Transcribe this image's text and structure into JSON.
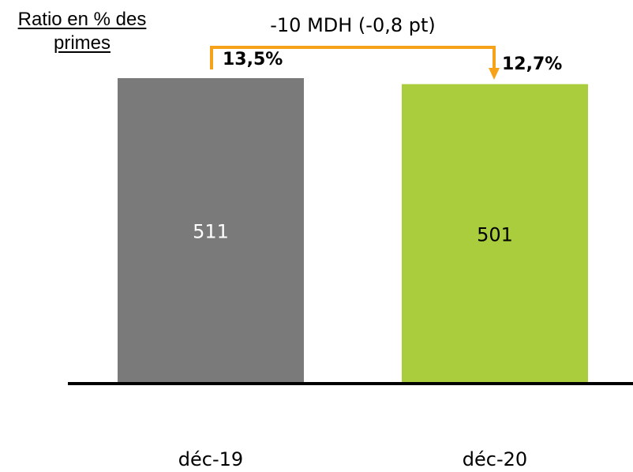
{
  "chart_data": {
    "type": "bar",
    "title": "Ratio en % des primes",
    "categories": [
      "déc-19",
      "déc-20"
    ],
    "values": [
      511,
      501
    ],
    "ratios": [
      "13,5%",
      "12,7%"
    ],
    "ylim": [
      0,
      511
    ],
    "variation_label": "-10 MDH (-0,8 pt)",
    "colors": {
      "bar_1": "#7a7a7a",
      "bar_2": "#a9cd3c",
      "arrow": "#f7a21b",
      "axis": "#000000"
    }
  }
}
